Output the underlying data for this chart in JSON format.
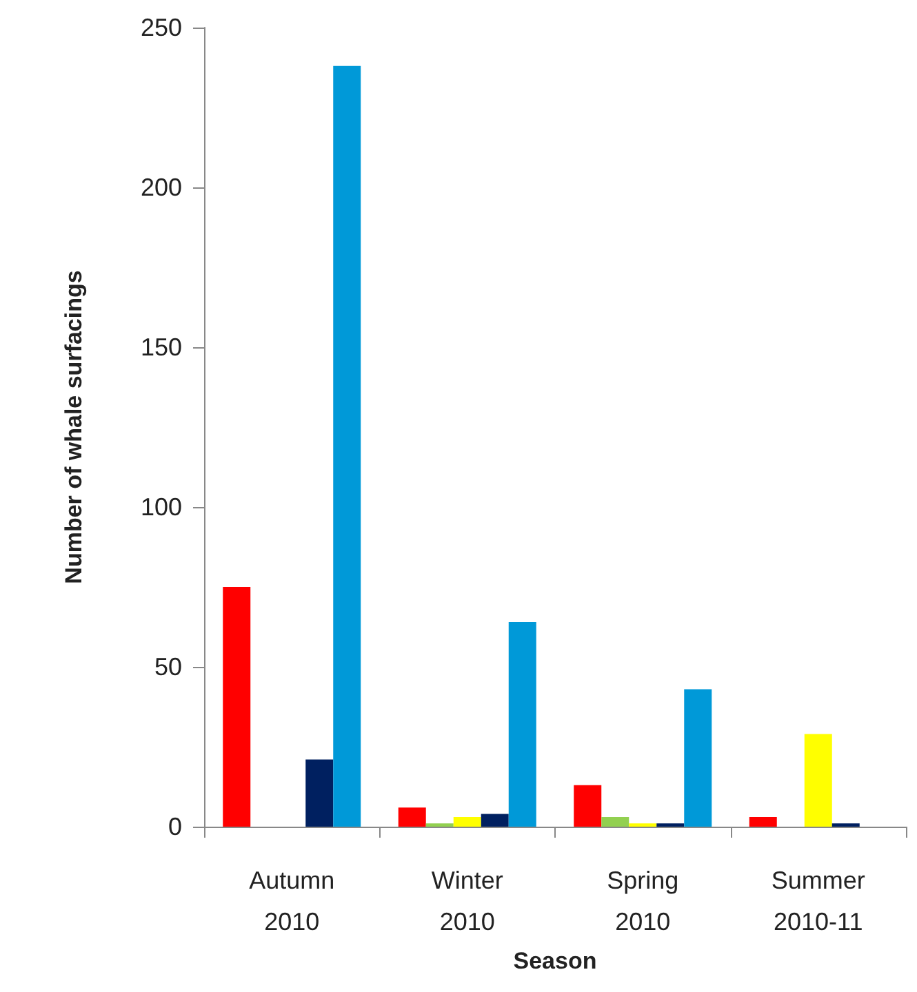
{
  "chart_data": {
    "type": "bar",
    "xlabel": "Season",
    "ylabel": "Number of whale surfacings",
    "categories": [
      "Autumn\n2010",
      "Winter\n2010",
      "Spring\n2010",
      "Summer\n2010-11"
    ],
    "series": [
      {
        "color": "#ff0000",
        "values": [
          75,
          6,
          13,
          3
        ]
      },
      {
        "color": "#92d050",
        "values": [
          0,
          1,
          3,
          0
        ]
      },
      {
        "color": "#ffff00",
        "values": [
          0,
          3,
          1,
          29
        ]
      },
      {
        "color": "#002060",
        "values": [
          21,
          4,
          1,
          1
        ]
      },
      {
        "color": "#0099d8",
        "values": [
          238,
          64,
          43,
          0
        ]
      }
    ],
    "ylim": [
      0,
      250
    ],
    "yticks": [
      0,
      50,
      100,
      150,
      200,
      250
    ],
    "grid": false
  }
}
